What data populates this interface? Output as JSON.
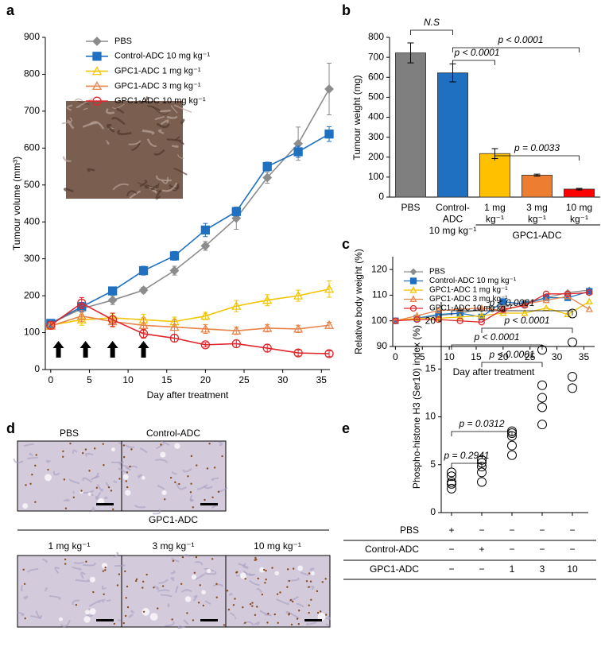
{
  "chart_data": [
    {
      "panel": "a",
      "type": "line",
      "x": [
        0,
        4,
        8,
        12,
        16,
        20,
        24,
        28,
        32,
        36
      ],
      "xlim": [
        -0.7,
        36.1
      ],
      "xticks": [
        0,
        5,
        10,
        15,
        20,
        25,
        30,
        35
      ],
      "ylim": [
        0,
        900
      ],
      "yticks": [
        0,
        100,
        200,
        300,
        400,
        500,
        600,
        700,
        800,
        900
      ],
      "xlabel": "Day after treatment",
      "ylabel": "Tumour volume (mm³)",
      "dose_days": [
        1,
        4.5,
        8,
        12
      ],
      "series": [
        {
          "name": "PBS",
          "color": "#8c8c8c",
          "marker": "diamond",
          "values": [
            125,
            165,
            188,
            215,
            268,
            335,
            410,
            520,
            612,
            760
          ],
          "errors": [
            10,
            10,
            12,
            8,
            12,
            12,
            30,
            15,
            45,
            70
          ]
        },
        {
          "name": "Control-ADC 10 mg kg⁻¹",
          "color": "#1f70c1",
          "marker": "square",
          "values": [
            125,
            170,
            213,
            268,
            308,
            378,
            428,
            550,
            590,
            638
          ],
          "errors": [
            10,
            12,
            10,
            12,
            12,
            18,
            12,
            12,
            15,
            20
          ]
        },
        {
          "name": "GPC1-ADC 1 mg kg⁻¹",
          "color": "#f2c500",
          "marker": "triangle",
          "values": [
            120,
            135,
            140,
            135,
            130,
            145,
            172,
            188,
            200,
            218
          ],
          "errors": [
            10,
            15,
            12,
            15,
            12,
            10,
            15,
            15,
            15,
            22
          ]
        },
        {
          "name": "GPC1-ADC 3 mg kg⁻¹",
          "color": "#e8834a",
          "marker": "triangle",
          "values": [
            118,
            145,
            130,
            120,
            115,
            110,
            105,
            112,
            110,
            120
          ],
          "errors": [
            8,
            15,
            15,
            20,
            20,
            12,
            10,
            10,
            10,
            8
          ]
        },
        {
          "name": "GPC1-ADC 10 mg kg⁻¹",
          "color": "#e0262b",
          "marker": "circle",
          "values": [
            120,
            180,
            135,
            97,
            85,
            67,
            70,
            58,
            45,
            43
          ],
          "errors": [
            10,
            15,
            18,
            12,
            10,
            6,
            10,
            10,
            8,
            8
          ]
        }
      ]
    },
    {
      "panel": "b",
      "type": "bar",
      "categories": [
        "PBS",
        "Control-\nADC\n10 mg kg⁻¹",
        "1 mg\nkg⁻¹",
        "3 mg\nkg⁻¹",
        "10 mg\nkg⁻¹"
      ],
      "values": [
        722,
        622,
        218,
        110,
        40
      ],
      "errors": [
        50,
        45,
        25,
        5,
        4
      ],
      "colors": [
        "#7f7f7f",
        "#1f70c1",
        "#ffc000",
        "#ed7d31",
        "#ff0000"
      ],
      "ylim": [
        0,
        800
      ],
      "yticks": [
        0,
        100,
        200,
        300,
        400,
        500,
        600,
        700,
        800
      ],
      "ylabel": "Tumour weight (mg)",
      "group_label": "GPC1-ADC",
      "comparisons": [
        "N.S",
        "p < 0.0001",
        "p < 0.0001",
        "p = 0.0033"
      ]
    },
    {
      "panel": "c",
      "type": "line",
      "x": [
        0,
        4,
        8,
        12,
        16,
        20,
        24,
        28,
        32,
        36
      ],
      "xlim": [
        -0.5,
        37
      ],
      "xticks": [
        0,
        5,
        10,
        15,
        20,
        25,
        30,
        35
      ],
      "ylim": [
        90,
        125
      ],
      "yticks": [
        90,
        100,
        110,
        120
      ],
      "xlabel": "Day after treatment",
      "ylabel": "Relative body weight (%)",
      "series": [
        {
          "name": "PBS",
          "color": "#8c8c8c",
          "marker": "diamond",
          "values": [
            100,
            101,
            102,
            103,
            104.5,
            106,
            107,
            109,
            111,
            112
          ]
        },
        {
          "name": "Control-ADC 10 mg kg⁻¹",
          "color": "#1f70c1",
          "marker": "square",
          "values": [
            100,
            101,
            102.5,
            103,
            101.5,
            107.5,
            106.5,
            109,
            109,
            111.5
          ]
        },
        {
          "name": "GPC1-ADC 1 mg kg⁻¹",
          "color": "#f2c500",
          "marker": "triangle",
          "values": [
            100,
            101,
            101,
            101.5,
            102,
            103,
            103,
            105,
            102.5,
            107.5
          ]
        },
        {
          "name": "GPC1-ADC 3 mg kg⁻¹",
          "color": "#e8834a",
          "marker": "triangle",
          "values": [
            100,
            102,
            104,
            104.5,
            105,
            104,
            106.5,
            108,
            109.5,
            104.5
          ]
        },
        {
          "name": "GPC1-ADC 10 mg kg⁻¹",
          "color": "#e0262b",
          "marker": "circle",
          "values": [
            100,
            100.5,
            100.5,
            100,
            99.5,
            104.5,
            106,
            110.5,
            110.5,
            111
          ]
        }
      ]
    },
    {
      "panel": "e",
      "type": "dot",
      "color": "#000000",
      "groups": [
        [
          2.5,
          3,
          3.2,
          3.8,
          4.2
        ],
        [
          3.2,
          4.2,
          4.8,
          5.2,
          5.5
        ],
        [
          6,
          7,
          8,
          8.3,
          8.5
        ],
        [
          9.2,
          11,
          12,
          13.3,
          17
        ],
        [
          13,
          14.2,
          17.8,
          20.8
        ]
      ],
      "ylim": [
        0,
        22
      ],
      "yticks": [
        0,
        5,
        10,
        15,
        20
      ],
      "ylabel": "Phospho-histone H3 (Ser10) index (%)",
      "comparisons": [
        "p < 0.0001",
        "p < 0.0001",
        "p < 0.0001",
        "p < 0.0001",
        "p = 0.0312",
        "p = 0.2941"
      ],
      "table": {
        "rows": [
          {
            "label": "PBS",
            "cells": [
              "+",
              "−",
              "−",
              "−",
              "−"
            ]
          },
          {
            "label": "Control-ADC",
            "cells": [
              "−",
              "+",
              "−",
              "−",
              "−"
            ]
          },
          {
            "label": "GPC1-ADC",
            "cells": [
              "−",
              "−",
              "1",
              "3",
              "10"
            ]
          }
        ]
      }
    }
  ],
  "panel_d": {
    "panel": "d",
    "top_labels": [
      "PBS",
      "Control-ADC"
    ],
    "group_label": "GPC1-ADC",
    "bottom_labels": [
      "1 mg kg⁻¹",
      "3 mg kg⁻¹",
      "10 mg kg⁻¹"
    ]
  }
}
